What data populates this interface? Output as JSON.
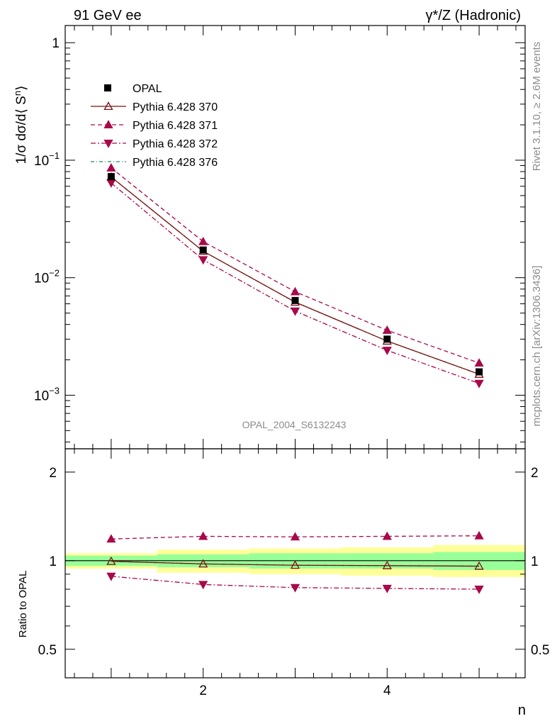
{
  "chart_data": {
    "type": "line",
    "title_left": "91 GeV ee",
    "title_right": "γ*/Z (Hadronic)",
    "xlabel": "n",
    "ylabel_main": "1/σ dσ/d⟨ S",
    "ylabel_main_sup": "n",
    "ylabel_main_tail": "⟩",
    "ylabel_ratio": "Ratio to OPAL",
    "watermark": "OPAL_2004_S6132243",
    "side_label_top": "Rivet 3.1.10, ≥ 2.6M events",
    "side_label_bottom": "mcplots.cern.ch [arXiv:1306.3436]",
    "x": [
      1,
      2,
      3,
      4,
      5
    ],
    "xlim": [
      0.5,
      5.5
    ],
    "main_ylim": [
      0.00035,
      1.4
    ],
    "main_yscale": "log",
    "main_yticks": [
      {
        "value": 1,
        "base": "1",
        "exp": ""
      },
      {
        "value": 0.1,
        "base": "10",
        "exp": "−1"
      },
      {
        "value": 0.01,
        "base": "10",
        "exp": "−2"
      },
      {
        "value": 0.001,
        "base": "10",
        "exp": "−3"
      }
    ],
    "ratio_ylim": [
      0.4,
      2.4
    ],
    "ratio_yscale": "log",
    "ratio_yticks": [
      {
        "value": 0.5,
        "label": "0.5"
      },
      {
        "value": 1,
        "label": "1"
      },
      {
        "value": 2,
        "label": "2"
      }
    ],
    "xticks": [
      {
        "value": 2,
        "label": "2"
      },
      {
        "value": 4,
        "label": "4"
      }
    ],
    "data": {
      "name": "OPAL",
      "values": [
        0.0725,
        0.0172,
        0.0064,
        0.003,
        0.00158
      ],
      "band_inner": [
        [
          0.96,
          1.04
        ],
        [
          0.95,
          1.05
        ],
        [
          0.94,
          1.06
        ],
        [
          0.94,
          1.06
        ],
        [
          0.93,
          1.07
        ]
      ],
      "band_outer": [
        [
          0.94,
          1.06
        ],
        [
          0.91,
          1.09
        ],
        [
          0.9,
          1.1
        ],
        [
          0.89,
          1.11
        ],
        [
          0.88,
          1.13
        ]
      ]
    },
    "series": [
      {
        "name": "Pythia 6.428 370",
        "color": "#7b1010",
        "dash": "",
        "marker": "triangle-up-open",
        "values": [
          0.072,
          0.0168,
          0.0062,
          0.00289,
          0.00151
        ],
        "ratio": [
          0.995,
          0.975,
          0.965,
          0.962,
          0.958
        ]
      },
      {
        "name": "Pythia 6.428 371",
        "color": "#a8094a",
        "dash": "6,4",
        "marker": "triangle-up",
        "values": [
          0.086,
          0.0203,
          0.0076,
          0.00357,
          0.00188
        ],
        "ratio": [
          1.185,
          1.21,
          1.205,
          1.21,
          1.215
        ]
      },
      {
        "name": "Pythia 6.428 372",
        "color": "#a8094a",
        "dash": "7,3,2,3",
        "marker": "triangle-down",
        "values": [
          0.064,
          0.0142,
          0.0052,
          0.00241,
          0.00126
        ],
        "ratio": [
          0.885,
          0.83,
          0.81,
          0.805,
          0.8
        ]
      },
      {
        "name": "Pythia 6.428 376",
        "color": "#1e8c64",
        "dash": "5,3,1,3",
        "marker": "none",
        "values": [
          0.072,
          0.0168,
          0.0062,
          0.00289,
          0.00151
        ],
        "ratio": [
          0.995,
          0.975,
          0.965,
          0.962,
          0.958
        ]
      }
    ],
    "band_colors": {
      "inner": "#99ff99",
      "outer": "#ffff99"
    },
    "legend_position": "top-left"
  }
}
